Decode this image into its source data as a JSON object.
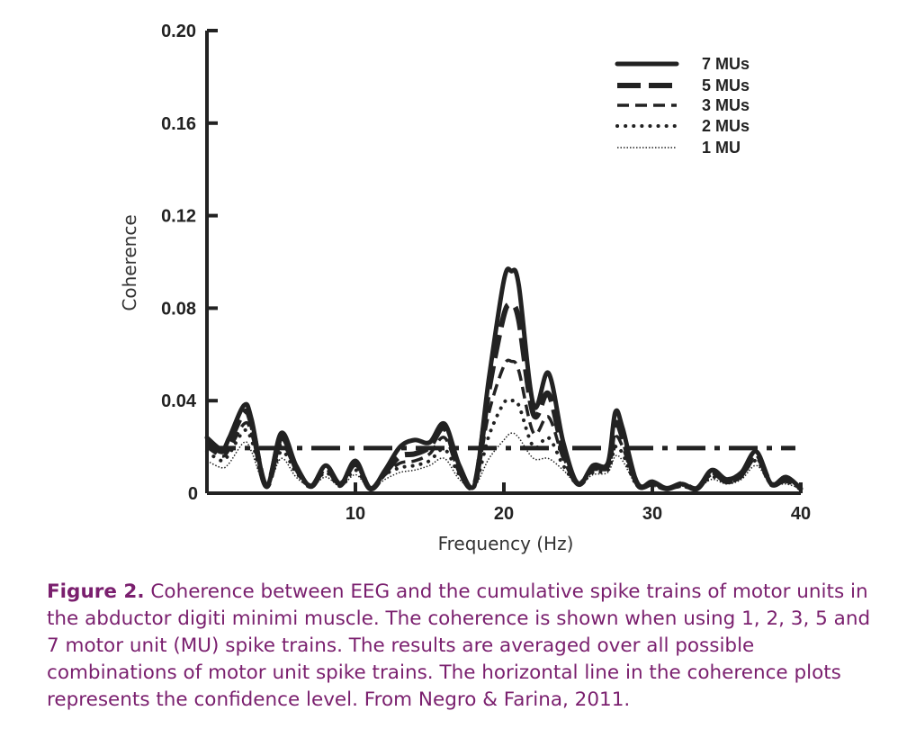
{
  "chart_data": {
    "type": "line",
    "xlabel": "Frequency (Hz)",
    "ylabel": "Coherence",
    "xlim": [
      0,
      40
    ],
    "ylim": [
      0,
      0.2
    ],
    "x_ticks": [
      "10",
      "20",
      "30",
      "40"
    ],
    "y_ticks": [
      "0",
      "0.04",
      "0.08",
      "0.12",
      "0.16",
      "0.20"
    ],
    "legend_position": "top-right",
    "confidence_level": 0.0195,
    "series": [
      {
        "name": "7 MUs",
        "style": "solid",
        "x": [
          0,
          1,
          1.5,
          2.5,
          3,
          4,
          5,
          6,
          7,
          8,
          9,
          10,
          11,
          12,
          13,
          14,
          15,
          16,
          17,
          18,
          19,
          20,
          20.5,
          21,
          22,
          23,
          24,
          25,
          26,
          27,
          27.5,
          28,
          29,
          30,
          31,
          32,
          33,
          34,
          35,
          36,
          37,
          38,
          39,
          40
        ],
        "values": [
          0.024,
          0.019,
          0.024,
          0.038,
          0.032,
          0.003,
          0.026,
          0.012,
          0.003,
          0.012,
          0.004,
          0.014,
          0.002,
          0.01,
          0.02,
          0.023,
          0.022,
          0.03,
          0.012,
          0.003,
          0.05,
          0.092,
          0.096,
          0.09,
          0.038,
          0.052,
          0.022,
          0.004,
          0.012,
          0.013,
          0.035,
          0.028,
          0.004,
          0.005,
          0.002,
          0.004,
          0.002,
          0.01,
          0.006,
          0.009,
          0.018,
          0.004,
          0.007,
          0.002
        ]
      },
      {
        "name": "5 MUs",
        "style": "dashed",
        "x": [
          0,
          1,
          1.5,
          2.5,
          3,
          4,
          5,
          6,
          7,
          8,
          9,
          10,
          11,
          12,
          13,
          14,
          15,
          16,
          17,
          18,
          19,
          20,
          20.5,
          21,
          22,
          23,
          24,
          25,
          26,
          27,
          27.5,
          28,
          29,
          30,
          31,
          32,
          33,
          34,
          35,
          36,
          37,
          38,
          39,
          40
        ],
        "values": [
          0.022,
          0.018,
          0.022,
          0.035,
          0.03,
          0.003,
          0.024,
          0.011,
          0.003,
          0.011,
          0.004,
          0.013,
          0.002,
          0.009,
          0.016,
          0.017,
          0.02,
          0.028,
          0.01,
          0.003,
          0.045,
          0.077,
          0.081,
          0.075,
          0.034,
          0.043,
          0.018,
          0.004,
          0.011,
          0.012,
          0.03,
          0.024,
          0.004,
          0.004,
          0.002,
          0.004,
          0.002,
          0.009,
          0.005,
          0.008,
          0.017,
          0.004,
          0.006,
          0.002
        ]
      },
      {
        "name": "3 MUs",
        "style": "short-dash",
        "x": [
          0,
          1,
          1.5,
          2.5,
          3,
          4,
          5,
          6,
          7,
          8,
          9,
          10,
          11,
          12,
          13,
          14,
          15,
          16,
          17,
          18,
          19,
          20,
          20.5,
          21,
          22,
          23,
          24,
          25,
          26,
          27,
          27.5,
          28,
          29,
          30,
          31,
          32,
          33,
          34,
          35,
          36,
          37,
          38,
          39,
          40
        ],
        "values": [
          0.02,
          0.016,
          0.019,
          0.03,
          0.026,
          0.003,
          0.021,
          0.01,
          0.003,
          0.01,
          0.003,
          0.012,
          0.002,
          0.008,
          0.013,
          0.014,
          0.017,
          0.024,
          0.009,
          0.003,
          0.035,
          0.055,
          0.057,
          0.053,
          0.026,
          0.033,
          0.015,
          0.004,
          0.01,
          0.011,
          0.024,
          0.02,
          0.003,
          0.004,
          0.002,
          0.003,
          0.002,
          0.008,
          0.005,
          0.007,
          0.015,
          0.004,
          0.005,
          0.002
        ]
      },
      {
        "name": "2 MUs",
        "style": "dotted",
        "x": [
          0,
          1,
          1.5,
          2.5,
          3,
          4,
          5,
          6,
          7,
          8,
          9,
          10,
          11,
          12,
          13,
          14,
          15,
          16,
          17,
          18,
          19,
          20,
          20.5,
          21,
          22,
          23,
          24,
          25,
          26,
          27,
          27.5,
          28,
          29,
          30,
          31,
          32,
          33,
          34,
          35,
          36,
          37,
          38,
          39,
          40
        ],
        "values": [
          0.018,
          0.014,
          0.017,
          0.027,
          0.023,
          0.003,
          0.018,
          0.009,
          0.003,
          0.009,
          0.003,
          0.01,
          0.002,
          0.008,
          0.011,
          0.012,
          0.014,
          0.019,
          0.008,
          0.003,
          0.025,
          0.039,
          0.04,
          0.038,
          0.02,
          0.024,
          0.012,
          0.004,
          0.009,
          0.01,
          0.02,
          0.017,
          0.003,
          0.004,
          0.002,
          0.003,
          0.002,
          0.007,
          0.005,
          0.008,
          0.014,
          0.004,
          0.005,
          0.002
        ]
      },
      {
        "name": "1 MU",
        "style": "fine-dotted",
        "x": [
          0,
          1,
          1.5,
          2.5,
          3,
          4,
          5,
          6,
          7,
          8,
          9,
          10,
          11,
          12,
          13,
          14,
          15,
          16,
          17,
          18,
          19,
          20,
          20.5,
          21,
          22,
          23,
          24,
          25,
          26,
          27,
          27.5,
          28,
          29,
          30,
          31,
          32,
          33,
          34,
          35,
          36,
          37,
          38,
          39,
          40
        ],
        "values": [
          0.014,
          0.011,
          0.013,
          0.022,
          0.018,
          0.003,
          0.015,
          0.007,
          0.003,
          0.007,
          0.003,
          0.008,
          0.002,
          0.006,
          0.009,
          0.01,
          0.012,
          0.015,
          0.006,
          0.003,
          0.015,
          0.023,
          0.026,
          0.024,
          0.015,
          0.015,
          0.01,
          0.004,
          0.008,
          0.009,
          0.016,
          0.014,
          0.003,
          0.003,
          0.002,
          0.003,
          0.002,
          0.006,
          0.004,
          0.006,
          0.012,
          0.004,
          0.004,
          0.002
        ]
      }
    ]
  },
  "caption": {
    "lead": "Figure 2.",
    "text": " Coherence between EEG and the cumulative spike trains of motor units in the abductor digiti minimi muscle. The coherence is shown when using 1, 2, 3, 5 and 7  motor unit (MU) spike trains. The results are averaged over all possible combinations of motor unit spike trains. The horizontal line in the coherence plots represents the confidence level. From Negro & Farina, 2011."
  }
}
